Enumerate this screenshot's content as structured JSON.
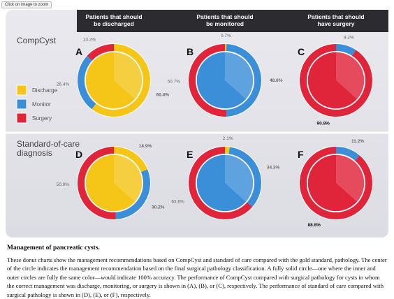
{
  "zoom_button": "Click on image to zoom",
  "column_titles": [
    [
      "Patients that should",
      "be discharged"
    ],
    [
      "Patients that should",
      "be monitored"
    ],
    [
      "Patients that should",
      "have surgery"
    ]
  ],
  "row_labels": [
    [
      "CompCyst"
    ],
    [
      "Standard-of-care",
      "diagnosis"
    ]
  ],
  "legend": [
    {
      "name": "Discharge",
      "color": "#f5c518"
    },
    {
      "name": "Monitor",
      "color": "#3b8fd9"
    },
    {
      "name": "Surgery",
      "color": "#e0243a"
    }
  ],
  "chart_data": [
    {
      "type": "pie",
      "letter": "A",
      "categories": [
        "Discharge",
        "Monitor",
        "Surgery"
      ],
      "values": [
        60.4,
        26.4,
        13.2
      ],
      "value_labels": [
        "60.4%",
        "26.4%",
        "13.2%"
      ],
      "colors": [
        "#f5c518",
        "#3b8fd9",
        "#e0243a"
      ],
      "center_color": "#f5c518"
    },
    {
      "type": "pie",
      "letter": "B",
      "categories": [
        "Discharge",
        "Monitor",
        "Surgery"
      ],
      "values": [
        0.7,
        48.6,
        50.7
      ],
      "value_labels": [
        "0.7%",
        "48.6%",
        "50.7%"
      ],
      "colors": [
        "#f5c518",
        "#3b8fd9",
        "#e0243a"
      ],
      "center_color": "#3b8fd9"
    },
    {
      "type": "pie",
      "letter": "C",
      "categories": [
        "Monitor",
        "Surgery"
      ],
      "values": [
        9.2,
        90.8
      ],
      "value_labels": [
        "9.2%",
        "90.8%"
      ],
      "colors": [
        "#3b8fd9",
        "#e0243a"
      ],
      "center_color": "#e0243a"
    },
    {
      "type": "pie",
      "letter": "D",
      "categories": [
        "Discharge",
        "Monitor",
        "Surgery"
      ],
      "values": [
        18.9,
        30.2,
        50.9
      ],
      "value_labels": [
        "18.9%",
        "30.2%",
        "50.9%"
      ],
      "colors": [
        "#f5c518",
        "#3b8fd9",
        "#e0243a"
      ],
      "center_color": "#f5c518"
    },
    {
      "type": "pie",
      "letter": "E",
      "categories": [
        "Discharge",
        "Monitor",
        "Surgery"
      ],
      "values": [
        2.1,
        34.3,
        63.6
      ],
      "value_labels": [
        "2.1%",
        "34.3%",
        "63.6%"
      ],
      "colors": [
        "#f5c518",
        "#3b8fd9",
        "#e0243a"
      ],
      "center_color": "#3b8fd9"
    },
    {
      "type": "pie",
      "letter": "F",
      "categories": [
        "Monitor",
        "Surgery"
      ],
      "values": [
        11.2,
        88.8
      ],
      "value_labels": [
        "11.2%",
        "88.8%"
      ],
      "colors": [
        "#3b8fd9",
        "#e0243a"
      ],
      "center_color": "#e0243a"
    }
  ],
  "caption_title": "Management of pancreatic cysts.",
  "caption_text": "These donut charts show the management recommendations based on CompCyst and standard of care compared with the gold standard, pathology. The center of the circle indicates the management recommendation based on the final surgical pathology classification. A fully solid circle—one where the inner and outer circles are fully the same color—would indicate 100% accuracy. The performance of CompCyst compared with surgical pathology for cysts in whom the correct management was discharge, monitoring, or surgery is shown in (A), (B), or (C), respectively. The performance of standard of care compared with surgical pathology is shown in (D), (E), or (F), respectively."
}
